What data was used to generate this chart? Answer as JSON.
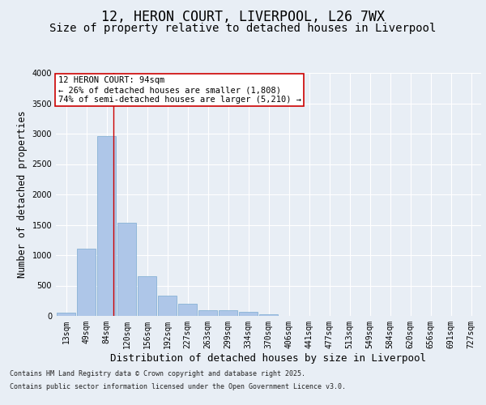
{
  "title": "12, HERON COURT, LIVERPOOL, L26 7WX",
  "subtitle": "Size of property relative to detached houses in Liverpool",
  "xlabel": "Distribution of detached houses by size in Liverpool",
  "ylabel": "Number of detached properties",
  "categories": [
    "13sqm",
    "49sqm",
    "84sqm",
    "120sqm",
    "156sqm",
    "192sqm",
    "227sqm",
    "263sqm",
    "299sqm",
    "334sqm",
    "370sqm",
    "406sqm",
    "441sqm",
    "477sqm",
    "513sqm",
    "549sqm",
    "584sqm",
    "620sqm",
    "656sqm",
    "691sqm",
    "727sqm"
  ],
  "values": [
    50,
    1105,
    2960,
    1535,
    650,
    340,
    200,
    90,
    90,
    70,
    30,
    5,
    5,
    0,
    0,
    0,
    0,
    0,
    0,
    0,
    0
  ],
  "bar_color": "#aec6e8",
  "bar_edge_color": "#7aaad0",
  "vline_x_index": 2.35,
  "vline_color": "#cc0000",
  "annotation_text": "12 HERON COURT: 94sqm\n← 26% of detached houses are smaller (1,808)\n74% of semi-detached houses are larger (5,210) →",
  "annotation_box_color": "#ffffff",
  "annotation_box_edge_color": "#cc0000",
  "ylim": [
    0,
    4000
  ],
  "yticks": [
    0,
    500,
    1000,
    1500,
    2000,
    2500,
    3000,
    3500,
    4000
  ],
  "background_color": "#e8eef5",
  "fig_background_color": "#e8eef5",
  "footer_line1": "Contains HM Land Registry data © Crown copyright and database right 2025.",
  "footer_line2": "Contains public sector information licensed under the Open Government Licence v3.0.",
  "title_fontsize": 12,
  "subtitle_fontsize": 10,
  "tick_fontsize": 7,
  "ylabel_fontsize": 8.5,
  "xlabel_fontsize": 9,
  "annotation_fontsize": 7.5
}
